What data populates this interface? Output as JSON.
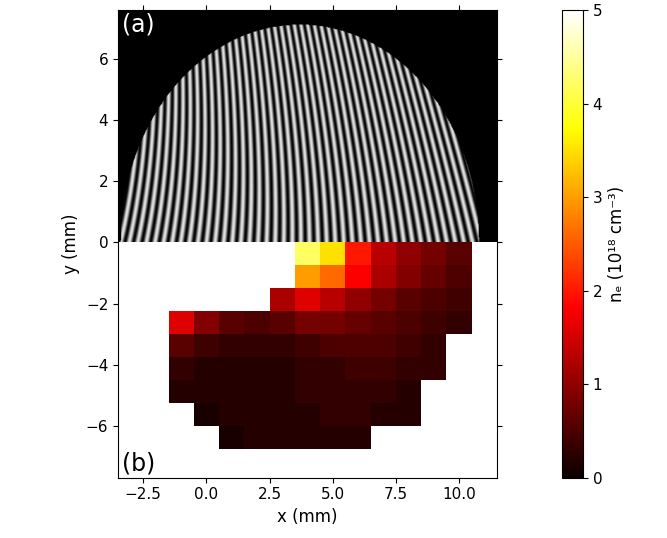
{
  "chart_data": {
    "type": "heatmap",
    "xlabel": "x (mm)",
    "ylabel": "y (mm)",
    "colorbar_label": "nₑ (10¹⁸ cm⁻³)",
    "annotations": [
      "(a)",
      "(b)"
    ],
    "xlim": [
      -3.5,
      11.5
    ],
    "ylim": [
      -7.7,
      7.6
    ],
    "xticks": [
      {
        "value": -2.5,
        "label": "−2.5"
      },
      {
        "value": 0,
        "label": "0.0"
      },
      {
        "value": 2.5,
        "label": "2.5"
      },
      {
        "value": 5,
        "label": "5.0"
      },
      {
        "value": 7.5,
        "label": "7.5"
      },
      {
        "value": 10,
        "label": "10.0"
      }
    ],
    "yticks": [
      {
        "value": -6,
        "label": "−6"
      },
      {
        "value": -4,
        "label": "−4"
      },
      {
        "value": -2,
        "label": "−2"
      },
      0,
      2,
      4,
      6
    ],
    "colorbar_range": [
      0,
      5
    ],
    "colorbar_ticks": [
      0,
      1,
      2,
      3,
      4,
      5
    ],
    "x_edges": [
      -3.5,
      -2.5,
      -1.5,
      -0.5,
      0.5,
      1.5,
      2.5,
      3.5,
      4.5,
      5.5,
      6.5,
      7.5,
      8.5,
      9.5,
      10.5,
      11.5
    ],
    "y_edges": [
      0,
      -0.75,
      -1.5,
      -2.25,
      -3.0,
      -3.75,
      -4.5,
      -5.25,
      -6.0,
      -6.75,
      -7.5
    ],
    "cells": [
      [
        null,
        null,
        null,
        null,
        null,
        null,
        null,
        4.2,
        3.5,
        2.0,
        1.3,
        1.0,
        0.8,
        0.6,
        null
      ],
      [
        null,
        null,
        null,
        null,
        null,
        null,
        null,
        3.0,
        2.6,
        1.8,
        1.2,
        0.9,
        0.7,
        0.5,
        null
      ],
      [
        null,
        null,
        null,
        null,
        null,
        null,
        1.2,
        1.6,
        1.3,
        1.0,
        0.8,
        0.6,
        0.5,
        0.4,
        null
      ],
      [
        null,
        null,
        1.6,
        0.9,
        0.6,
        0.5,
        0.6,
        0.8,
        0.8,
        0.7,
        0.6,
        0.5,
        0.4,
        0.3,
        null
      ],
      [
        null,
        null,
        0.6,
        0.4,
        0.3,
        0.3,
        0.3,
        0.4,
        0.5,
        0.5,
        0.5,
        0.4,
        0.3,
        null,
        null
      ],
      [
        null,
        null,
        0.3,
        0.2,
        0.2,
        0.2,
        0.2,
        0.3,
        0.3,
        0.4,
        0.4,
        0.3,
        0.3,
        null,
        null
      ],
      [
        null,
        null,
        0.2,
        0.2,
        0.2,
        0.2,
        0.2,
        0.3,
        0.3,
        0.3,
        0.3,
        0.2,
        null,
        null,
        null
      ],
      [
        null,
        null,
        null,
        0.1,
        0.2,
        0.2,
        0.2,
        0.2,
        0.3,
        0.3,
        0.2,
        0.2,
        null,
        null,
        null
      ],
      [
        null,
        null,
        null,
        null,
        0.1,
        0.2,
        0.2,
        0.2,
        0.2,
        0.2,
        null,
        null,
        null,
        null,
        null
      ],
      [
        null,
        null,
        null,
        null,
        null,
        null,
        null,
        null,
        null,
        null,
        null,
        null,
        null,
        null,
        null
      ]
    ]
  }
}
